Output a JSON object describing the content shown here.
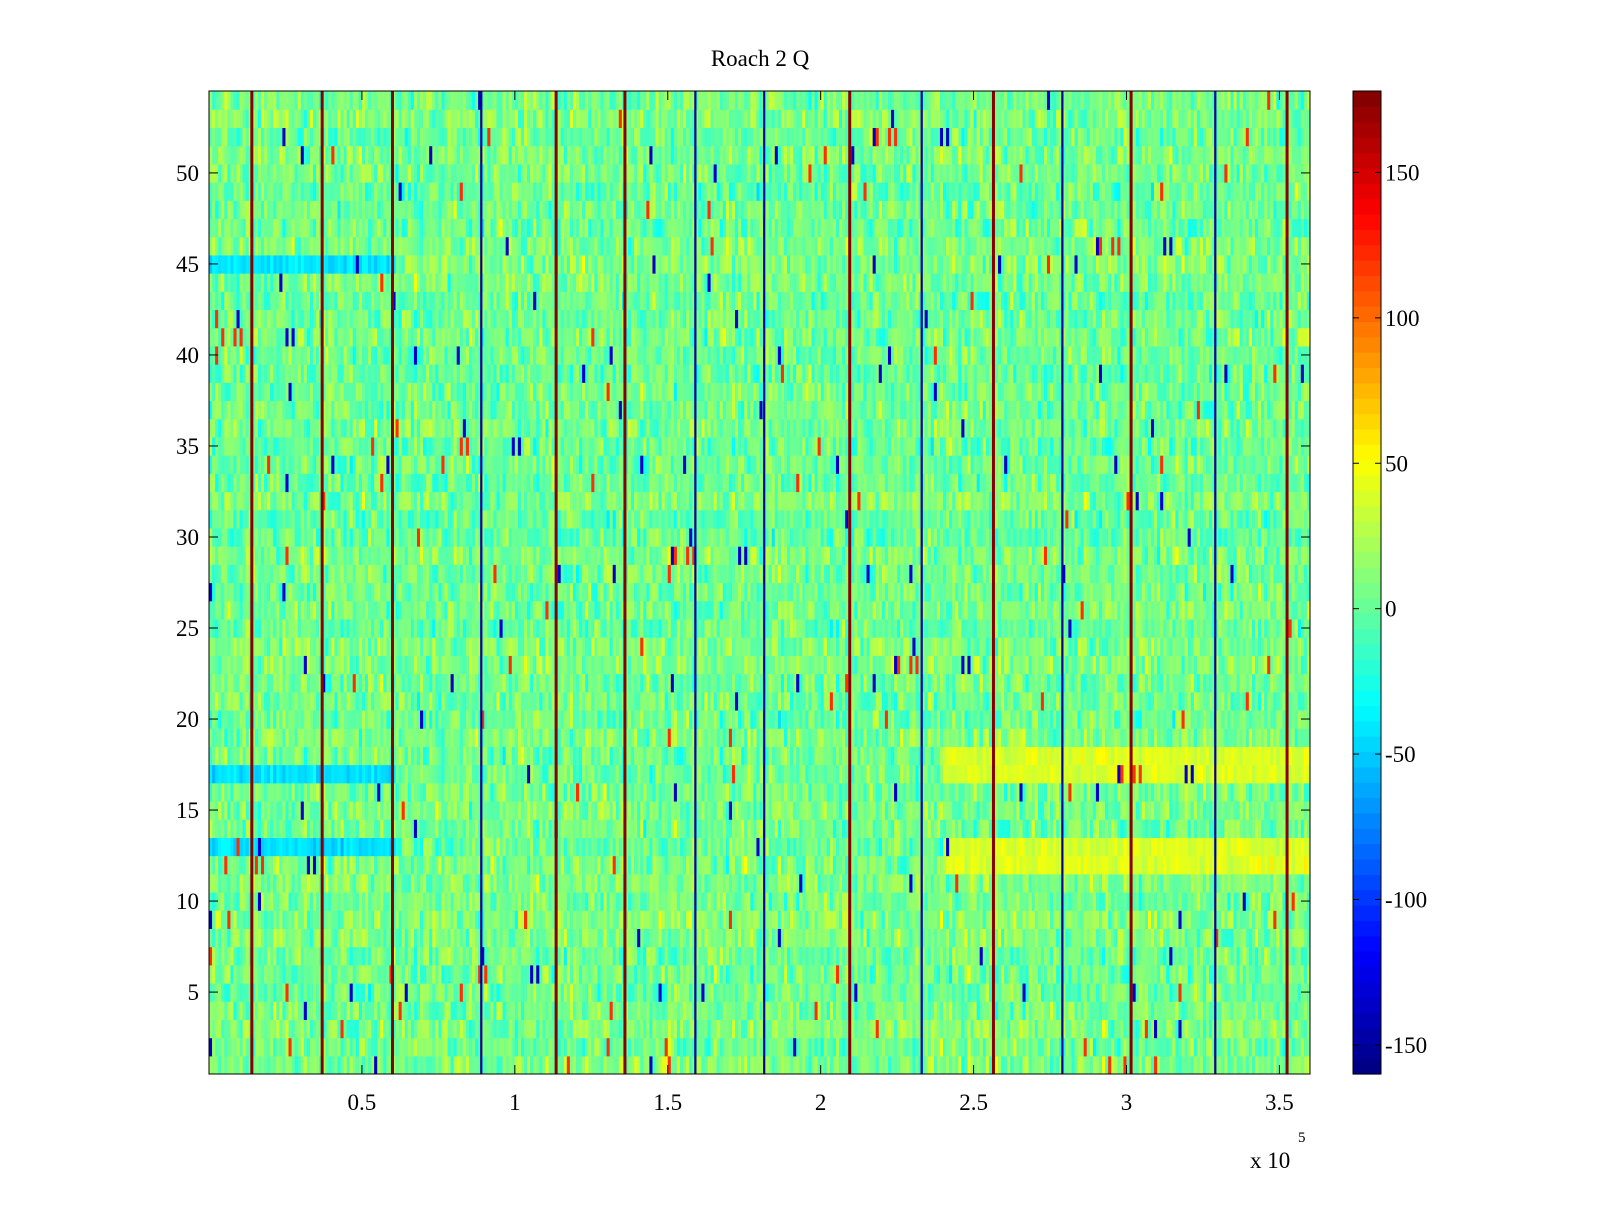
{
  "chart_data": {
    "type": "heatmap",
    "title": "Roach 2 Q",
    "colormap": "jet",
    "xlabel": "",
    "ylabel": "",
    "xlim": [
      0,
      360000
    ],
    "ylim": [
      0.5,
      54.5
    ],
    "x_ticks": [
      50000,
      100000,
      150000,
      200000,
      250000,
      300000,
      350000
    ],
    "x_tick_labels": [
      "0.5",
      "1",
      "1.5",
      "2",
      "2.5",
      "3",
      "3.5"
    ],
    "x_multiplier_label": "x 10",
    "x_multiplier_exponent": "5",
    "y_ticks": [
      5,
      10,
      15,
      20,
      25,
      30,
      35,
      40,
      45,
      50
    ],
    "y_tick_labels": [
      "5",
      "10",
      "15",
      "20",
      "25",
      "30",
      "35",
      "40",
      "45",
      "50"
    ],
    "rows": 54,
    "background_mean": 5,
    "background_spread": 28,
    "colorbar": {
      "clim": [
        -160,
        178
      ],
      "ticks": [
        -150,
        -100,
        -50,
        0,
        50,
        100,
        150
      ],
      "tick_labels": [
        "-150",
        "-100",
        "-50",
        "0",
        "50",
        "100",
        "150"
      ]
    },
    "spike_columns_x": [
      14000,
      37000,
      60000,
      113500,
      136000,
      209500,
      256500,
      301500,
      352500
    ],
    "spike_columns_value": 175,
    "thin_dark_lines_x": [
      89000,
      159000,
      181500,
      233000,
      279000,
      329000
    ],
    "thin_dark_lines_value": -150,
    "high_band_rows": [
      12,
      13,
      17,
      18
    ],
    "high_band_region_x": [
      240000,
      360000
    ],
    "high_band_value": 38,
    "low_band_rows": [
      13,
      17,
      45
    ],
    "low_band_region_x": [
      0,
      60000
    ],
    "low_band_value": -45
  }
}
